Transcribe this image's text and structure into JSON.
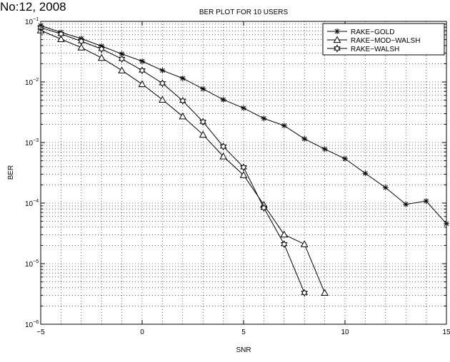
{
  "page": {
    "header_text": "No:12, 2008"
  },
  "chart_data": {
    "type": "line",
    "title": "BER PLOT FOR 10 USERS",
    "xlabel": "SNR",
    "ylabel": "BER",
    "xlim": [
      -5,
      15
    ],
    "ylim": [
      1e-06,
      0.1
    ],
    "yscale": "log",
    "grid": true,
    "legend_position": "top-right",
    "x_ticks": [
      {
        "value": -5,
        "label": "−5"
      },
      {
        "value": 0,
        "label": "0"
      },
      {
        "value": 5,
        "label": "5"
      },
      {
        "value": 10,
        "label": "10"
      },
      {
        "value": 15,
        "label": "15"
      }
    ],
    "y_ticks": [
      {
        "value": 1e-06,
        "base": "10",
        "exp": "−6"
      },
      {
        "value": 1e-05,
        "base": "10",
        "exp": "−5"
      },
      {
        "value": 0.0001,
        "base": "10",
        "exp": "−4"
      },
      {
        "value": 0.001,
        "base": "10",
        "exp": "−3"
      },
      {
        "value": 0.01,
        "base": "10",
        "exp": "−2"
      },
      {
        "value": 0.1,
        "base": "10",
        "exp": "−1"
      }
    ],
    "series": [
      {
        "name": "RAKE−GOLD",
        "marker": "asterisk",
        "x": [
          -5,
          -4,
          -3,
          -2,
          -1,
          0,
          1,
          2,
          3,
          4,
          5,
          6,
          7,
          8,
          9,
          10,
          11,
          12,
          13,
          14,
          15
        ],
        "y": [
          0.085,
          0.066,
          0.052,
          0.039,
          0.029,
          0.022,
          0.0155,
          0.0115,
          0.0077,
          0.0051,
          0.0037,
          0.0025,
          0.0019,
          0.00115,
          0.00078,
          0.00054,
          0.00031,
          0.00018,
          9.55e-05,
          0.000108,
          4.57e-05
        ]
      },
      {
        "name": "RAKE−MOD−WALSH",
        "marker": "triangle",
        "x": [
          -5,
          -4,
          -3,
          -2,
          -1,
          0,
          1,
          2,
          3,
          4,
          5,
          6,
          7,
          8,
          9
        ],
        "y": [
          0.071,
          0.051,
          0.037,
          0.025,
          0.0155,
          0.0092,
          0.0051,
          0.0027,
          0.00135,
          0.00059,
          0.00029,
          9.35e-05,
          3.02e-05,
          2.1e-05,
          3.3e-06
        ]
      },
      {
        "name": "RAKE−WALSH",
        "marker": "hexagram",
        "x": [
          -5,
          -4,
          -3,
          -2,
          -1,
          0,
          1,
          2,
          3,
          4,
          5,
          6,
          7,
          8
        ],
        "y": [
          0.079,
          0.062,
          0.047,
          0.035,
          0.024,
          0.0155,
          0.0095,
          0.0049,
          0.0022,
          0.00086,
          0.00039,
          8.35e-05,
          2.1e-05,
          3.3e-06
        ]
      }
    ]
  }
}
